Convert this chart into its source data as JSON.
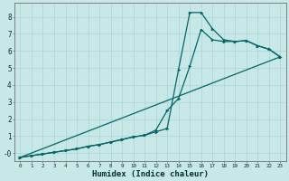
{
  "xlabel": "Humidex (Indice chaleur)",
  "bg_color": "#c8e8e8",
  "grid_color": "#b0d8d8",
  "line_color": "#006868",
  "xlim": [
    -0.5,
    23.5
  ],
  "ylim": [
    -0.45,
    8.8
  ],
  "xticks": [
    0,
    1,
    2,
    3,
    4,
    5,
    6,
    7,
    8,
    9,
    10,
    11,
    12,
    13,
    14,
    15,
    16,
    17,
    18,
    19,
    20,
    21,
    22,
    23
  ],
  "yticks": [
    0,
    1,
    2,
    3,
    4,
    5,
    6,
    7,
    8
  ],
  "ytick_labels": [
    "-0",
    "1",
    "2",
    "3",
    "4",
    "5",
    "6",
    "7",
    "8"
  ],
  "line1_x": [
    0,
    1,
    2,
    3,
    4,
    5,
    6,
    7,
    8,
    9,
    10,
    11,
    12,
    13,
    14,
    15,
    16,
    17,
    18,
    19,
    20,
    21,
    22,
    23
  ],
  "line1_y": [
    -0.25,
    -0.15,
    -0.05,
    0.05,
    0.15,
    0.25,
    0.4,
    0.5,
    0.65,
    0.8,
    0.95,
    1.05,
    1.25,
    1.45,
    4.9,
    8.25,
    8.25,
    7.3,
    6.65,
    6.55,
    6.6,
    6.3,
    6.1,
    5.65
  ],
  "line2_x": [
    0,
    1,
    2,
    3,
    4,
    5,
    6,
    7,
    8,
    9,
    10,
    11,
    12,
    13,
    14,
    15,
    16,
    17,
    18,
    19,
    20,
    21,
    22,
    23
  ],
  "line2_y": [
    -0.25,
    -0.15,
    -0.05,
    0.05,
    0.15,
    0.25,
    0.4,
    0.5,
    0.65,
    0.8,
    0.95,
    1.05,
    1.35,
    2.5,
    3.2,
    5.1,
    7.25,
    6.65,
    6.55,
    6.55,
    6.6,
    6.3,
    6.1,
    5.65
  ],
  "line3_x": [
    0,
    23
  ],
  "line3_y": [
    -0.25,
    5.65
  ]
}
